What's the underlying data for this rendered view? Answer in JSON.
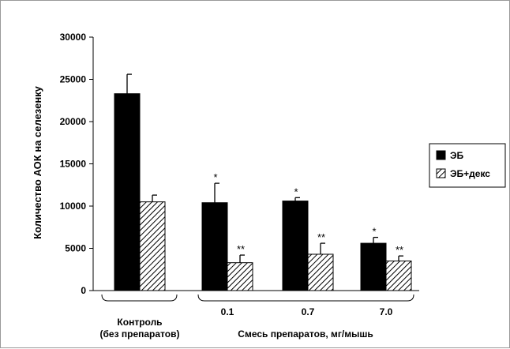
{
  "chart_data": {
    "type": "bar",
    "ylabel": "Количество АОК на селезенку",
    "xlabel": "Смесь препаратов, мг/мышь",
    "ylim": [
      0,
      30000
    ],
    "yticks": [
      "0",
      "5000",
      "10000",
      "15000",
      "20000",
      "25000",
      "30000"
    ],
    "grid": false,
    "legend": "right",
    "groups": [
      {
        "lines": [
          "Контроль",
          "(без препаратов)"
        ],
        "bar_indices": [
          0
        ]
      },
      {
        "lines": [
          "Смесь препаратов, мг/мышь"
        ],
        "bar_indices": [
          1,
          2,
          3
        ]
      }
    ],
    "categories": [
      "",
      "0.1",
      "0.7",
      "7.0"
    ],
    "series": [
      {
        "name": "ЭБ",
        "color": "#000000",
        "pattern": "solid",
        "values": [
          23300,
          10400,
          10600,
          5600
        ],
        "errors": [
          2300,
          2300,
          400,
          700
        ],
        "marks": [
          "",
          "*",
          "*",
          "*"
        ]
      },
      {
        "name": "ЭБ+декс",
        "color": "#ffffff",
        "pattern": "diagonal-hatch",
        "values": [
          10500,
          3300,
          4300,
          3500
        ],
        "errors": [
          800,
          900,
          1300,
          600
        ],
        "marks": [
          "",
          "**",
          "**",
          "**"
        ]
      }
    ]
  }
}
